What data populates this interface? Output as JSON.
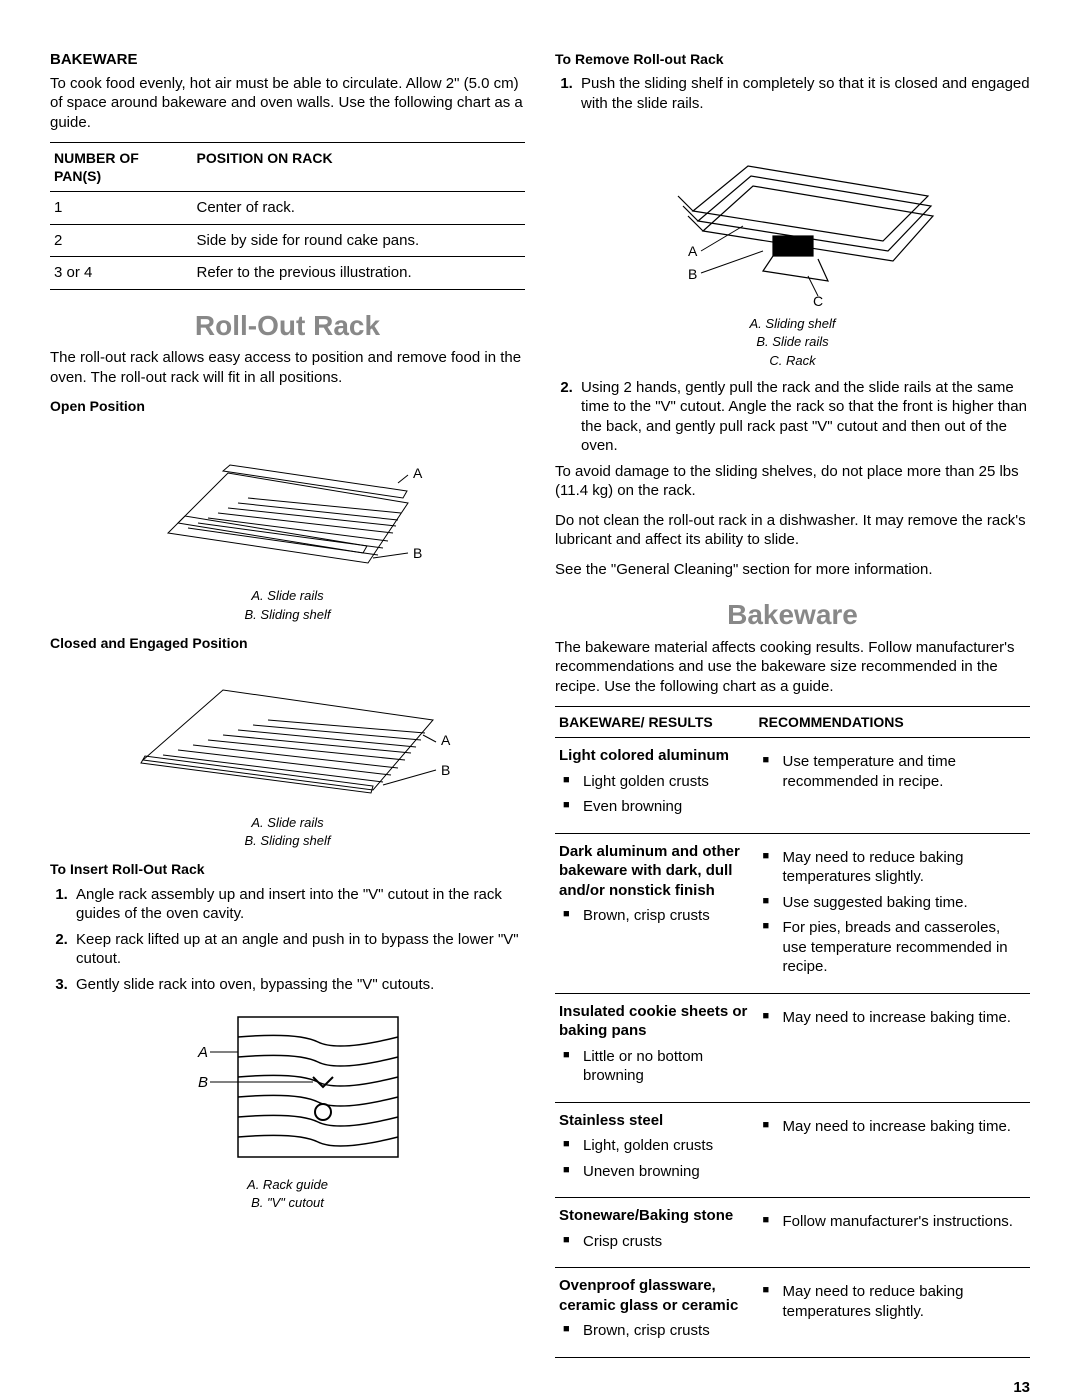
{
  "left": {
    "bakeware_title": "BAKEWARE",
    "bakeware_text": "To cook food evenly, hot air must be able to circulate. Allow 2\" (5.0 cm) of space around bakeware and oven walls. Use the following chart as a guide.",
    "pans_table": {
      "headers": [
        "NUMBER OF PAN(S)",
        "POSITION ON RACK"
      ],
      "rows": [
        [
          "1",
          "Center of rack."
        ],
        [
          "2",
          "Side by side for round cake pans."
        ],
        [
          "3 or 4",
          "Refer to the previous illustration."
        ]
      ]
    },
    "rollout_title": "Roll-Out Rack",
    "rollout_intro": "The roll-out rack allows easy access to position and remove food in the oven. The roll-out rack will fit in all positions.",
    "open_pos": "Open Position",
    "open_labels": {
      "A": "A",
      "B": "B"
    },
    "open_caption_a": "A. Slide rails",
    "open_caption_b": "B. Sliding shelf",
    "closed_pos": "Closed and Engaged Position",
    "closed_labels": {
      "A": "A",
      "B": "B"
    },
    "closed_caption_a": "A. Slide rails",
    "closed_caption_b": "B. Sliding shelf",
    "insert_title": "To Insert Roll-Out Rack",
    "insert_steps": [
      "Angle rack assembly up and insert into the \"V\" cutout in the rack guides of the oven cavity.",
      "Keep rack lifted up at an angle and push in to bypass the lower \"V\" cutout.",
      "Gently slide rack into oven, bypassing the \"V\" cutouts."
    ],
    "insert_labels": {
      "A": "A",
      "B": "B"
    },
    "insert_caption_a": "A. Rack guide",
    "insert_caption_b": "B. \"V\" cutout"
  },
  "right": {
    "remove_title": "To Remove Roll-out Rack",
    "remove_step1": "Push the sliding shelf in completely so that it is closed and engaged with the slide rails.",
    "remove_labels": {
      "A": "A",
      "B": "B",
      "C": "C"
    },
    "remove_caption_a": "A. Sliding shelf",
    "remove_caption_b": "B. Slide rails",
    "remove_caption_c": "C. Rack",
    "remove_step2": "Using 2 hands, gently pull the rack and the slide rails at the same time to the \"V\" cutout. Angle the rack so that the front is higher than the back, and gently pull rack past \"V\" cutout and then out of the oven.",
    "remove_note1": "To avoid damage to the sliding shelves, do not place more than 25 lbs (11.4 kg) on the rack.",
    "remove_note2": "Do not clean the roll-out rack in a dishwasher. It may remove the rack's lubricant and affect its ability to slide.",
    "remove_note3": "See the \"General Cleaning\" section for more information.",
    "bakeware_big": "Bakeware",
    "bakeware_intro": "The bakeware material affects cooking results. Follow manufacturer's recommendations and use the bakeware size recommended in the recipe. Use the following chart as a guide.",
    "bake_headers": [
      "BAKEWARE/ RESULTS",
      "RECOMMENDATIONS"
    ],
    "bake_rows": [
      {
        "title": "Light colored aluminum",
        "results": [
          "Light golden crusts",
          "Even browning"
        ],
        "recs": [
          "Use temperature and time recommended in recipe."
        ]
      },
      {
        "title": "Dark aluminum and other bakeware with dark, dull and/or nonstick finish",
        "results": [
          "Brown, crisp crusts"
        ],
        "recs": [
          "May need to reduce baking temperatures slightly.",
          "Use suggested baking time.",
          "For pies, breads and casseroles, use temperature recommended in recipe."
        ]
      },
      {
        "title": "Insulated cookie sheets or baking pans",
        "results": [
          "Little or no bottom browning"
        ],
        "recs": [
          "May need to increase baking time."
        ]
      },
      {
        "title": "Stainless steel",
        "results": [
          "Light, golden crusts",
          "Uneven browning"
        ],
        "recs": [
          "May need to increase baking time."
        ]
      },
      {
        "title": "Stoneware/Baking stone",
        "results": [
          "Crisp crusts"
        ],
        "recs": [
          "Follow manufacturer's instructions."
        ]
      },
      {
        "title": "Ovenproof glassware, ceramic glass or ceramic",
        "results": [
          "Brown, crisp crusts"
        ],
        "recs": [
          "May need to reduce baking temperatures slightly."
        ]
      }
    ]
  },
  "page_number": "13"
}
